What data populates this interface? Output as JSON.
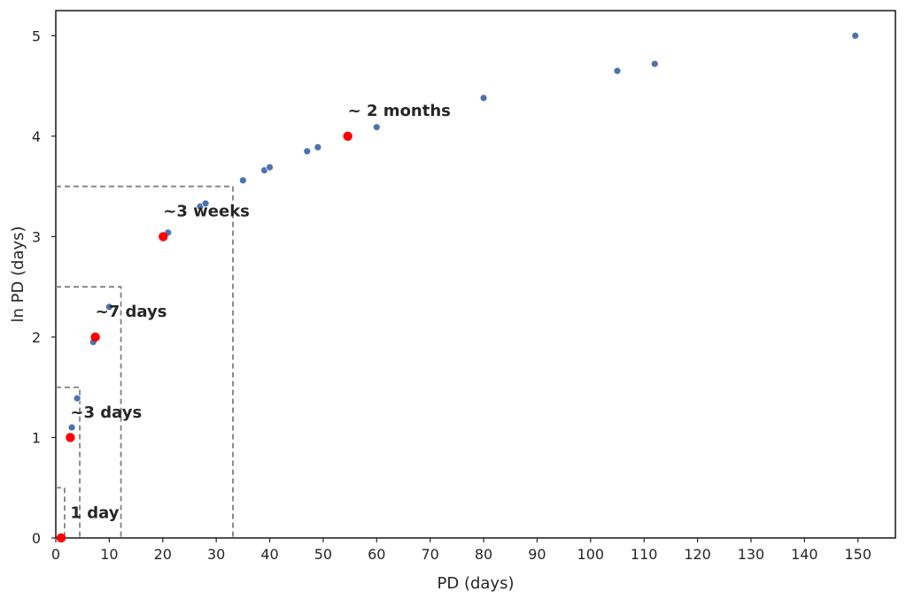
{
  "chart_data": {
    "type": "scatter",
    "title": "",
    "xlabel": "PD (days)",
    "ylabel": "ln PD (days)",
    "xlim": [
      0,
      157
    ],
    "ylim": [
      0,
      5.25
    ],
    "xticks": [
      "0",
      "10",
      "20",
      "30",
      "40",
      "50",
      "60",
      "70",
      "80",
      "90",
      "100",
      "110",
      "120",
      "130",
      "140",
      "150"
    ],
    "yticks": [
      "0",
      "1",
      "2",
      "3",
      "4",
      "5"
    ],
    "grid": false,
    "series": [
      {
        "color": "#4c72b0",
        "points": [
          {
            "x": 3,
            "y": 1.1
          },
          {
            "x": 4,
            "y": 1.39
          },
          {
            "x": 7,
            "y": 1.95
          },
          {
            "x": 10,
            "y": 2.3
          },
          {
            "x": 21,
            "y": 3.04
          },
          {
            "x": 27,
            "y": 3.3
          },
          {
            "x": 28,
            "y": 3.33
          },
          {
            "x": 35,
            "y": 3.56
          },
          {
            "x": 39,
            "y": 3.66
          },
          {
            "x": 40,
            "y": 3.69
          },
          {
            "x": 47,
            "y": 3.85
          },
          {
            "x": 49,
            "y": 3.89
          },
          {
            "x": 60,
            "y": 4.09
          },
          {
            "x": 80,
            "y": 4.38
          },
          {
            "x": 105,
            "y": 4.65
          },
          {
            "x": 112,
            "y": 4.72
          },
          {
            "x": 149.5,
            "y": 5.0
          }
        ]
      },
      {
        "color": "#ff0000",
        "points": [
          {
            "x": 1,
            "y": 0
          },
          {
            "x": 2.72,
            "y": 1
          },
          {
            "x": 7.39,
            "y": 2
          },
          {
            "x": 20.09,
            "y": 3
          },
          {
            "x": 54.6,
            "y": 4
          }
        ]
      }
    ],
    "reference_boxes": [
      {
        "x": 1.65,
        "y": 0.5
      },
      {
        "x": 4.48,
        "y": 1.5
      },
      {
        "x": 12.18,
        "y": 2.5
      },
      {
        "x": 33.12,
        "y": 3.5
      }
    ],
    "annotations": [
      {
        "text": "1 day",
        "x": 2.72,
        "y": 0.2
      },
      {
        "text": "~3 days",
        "x": 2.72,
        "y": 1.2
      },
      {
        "text": "~7 days",
        "x": 7.39,
        "y": 2.2
      },
      {
        "text": "~3 weeks",
        "x": 20.09,
        "y": 3.2
      },
      {
        "text": "~ 2 months",
        "x": 54.6,
        "y": 4.2
      }
    ]
  }
}
